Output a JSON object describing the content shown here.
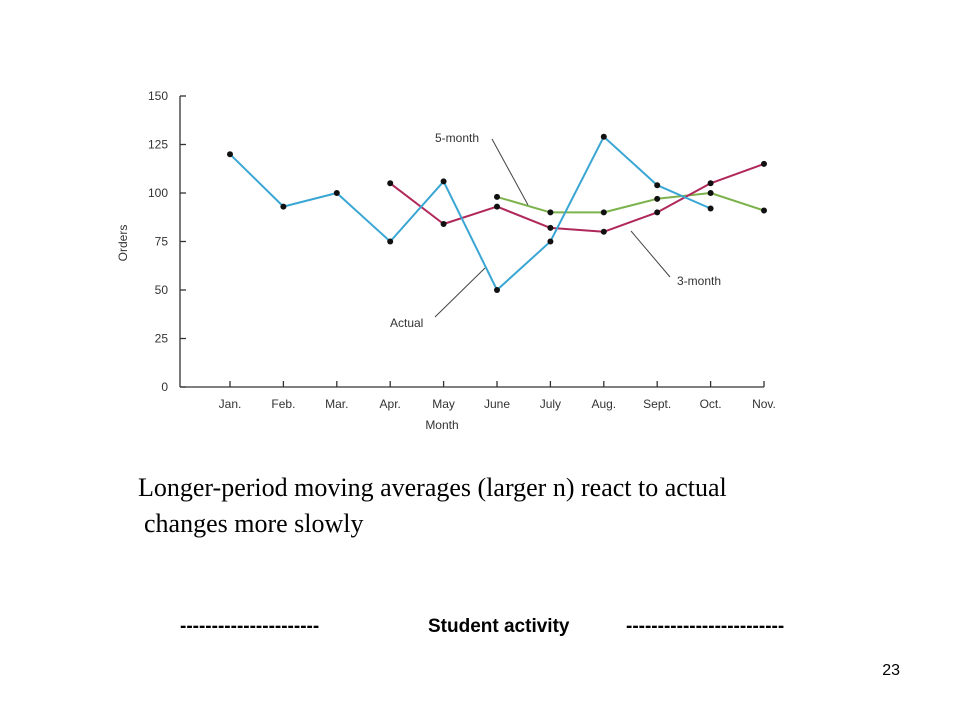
{
  "chart_data": {
    "type": "line",
    "categories": [
      "Jan.",
      "Feb.",
      "Mar.",
      "Apr.",
      "May",
      "June",
      "July",
      "Aug.",
      "Sept.",
      "Oct.",
      "Nov."
    ],
    "xlabel": "Month",
    "ylabel": "Orders",
    "ylim": [
      0,
      150
    ],
    "yticks": [
      0,
      25,
      50,
      75,
      100,
      125,
      150
    ],
    "grid": false,
    "series": [
      {
        "name": "Actual",
        "color": "#3aa6d4",
        "values": [
          120,
          93,
          100,
          75,
          106,
          50,
          75,
          129,
          104,
          92,
          null
        ]
      },
      {
        "name": "3-month",
        "color": "#b0285a",
        "values": [
          null,
          null,
          null,
          105,
          84,
          93,
          82,
          80,
          90,
          105,
          115
        ]
      },
      {
        "name": "5-month",
        "color": "#7cb24c",
        "values": [
          null,
          null,
          null,
          null,
          null,
          98,
          90,
          90,
          97,
          100,
          91
        ]
      }
    ]
  },
  "caption": {
    "line1": "Longer-period moving averages (larger n) react to actual",
    "line2": "changes more slowly"
  },
  "activity": {
    "left_dashes": "----------------------",
    "label": "Student activity",
    "right_dashes": "-------------------------"
  },
  "page_number": "23"
}
